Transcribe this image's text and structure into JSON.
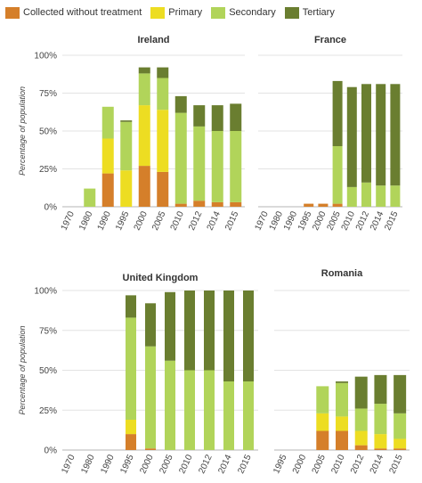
{
  "legend": [
    {
      "label": "Collected without treatment",
      "color": "#d57f2a"
    },
    {
      "label": "Primary",
      "color": "#eddd22"
    },
    {
      "label": "Secondary",
      "color": "#b1d45a"
    },
    {
      "label": "Tertiary",
      "color": "#6a7e30"
    }
  ],
  "chart_data": [
    {
      "type": "bar",
      "stacked": true,
      "title": "Ireland",
      "ylabel": "Percentage of population",
      "ylim": [
        0,
        100
      ],
      "yticks": [
        "0%",
        "25%",
        "50%",
        "75%",
        "100%"
      ],
      "categories": [
        "1970",
        "1980",
        "1990",
        "1995",
        "2000",
        "2005",
        "2010",
        "2012",
        "2014",
        "2015"
      ],
      "series": [
        {
          "name": "Collected without treatment",
          "values": [
            0,
            0,
            22,
            0,
            27,
            23,
            2,
            4,
            3,
            3
          ]
        },
        {
          "name": "Primary",
          "values": [
            0,
            0,
            23,
            24,
            40,
            41,
            0,
            0,
            0,
            0
          ]
        },
        {
          "name": "Secondary",
          "values": [
            0,
            12,
            21,
            32,
            21,
            21,
            60,
            49,
            47,
            47
          ]
        },
        {
          "name": "Tertiary",
          "values": [
            0,
            0,
            0,
            1,
            4,
            7,
            11,
            14,
            17,
            18
          ]
        }
      ]
    },
    {
      "type": "bar",
      "stacked": true,
      "title": "France",
      "ylabel": "",
      "ylim": [
        0,
        100
      ],
      "yticks": [],
      "categories": [
        "1970",
        "1980",
        "1990",
        "1995",
        "2000",
        "2005",
        "2010",
        "2012",
        "2014",
        "2015"
      ],
      "series": [
        {
          "name": "Collected without treatment",
          "values": [
            0,
            0,
            0,
            2,
            2,
            2,
            0,
            0,
            0,
            0
          ]
        },
        {
          "name": "Primary",
          "values": [
            0,
            0,
            0,
            0,
            0,
            0,
            0,
            0,
            0,
            0
          ]
        },
        {
          "name": "Secondary",
          "values": [
            0,
            0,
            0,
            0,
            0,
            38,
            13,
            16,
            14,
            14
          ]
        },
        {
          "name": "Tertiary",
          "values": [
            0,
            0,
            0,
            0,
            0,
            43,
            66,
            65,
            67,
            67
          ]
        }
      ]
    },
    {
      "type": "bar",
      "stacked": true,
      "title": "United Kingdom",
      "ylabel": "Percentage of population",
      "ylim": [
        0,
        100
      ],
      "yticks": [
        "0%",
        "25%",
        "50%",
        "75%",
        "100%"
      ],
      "categories": [
        "1970",
        "1980",
        "1990",
        "1995",
        "2000",
        "2005",
        "2010",
        "2012",
        "2014",
        "2015"
      ],
      "series": [
        {
          "name": "Collected without treatment",
          "values": [
            0,
            0,
            0,
            10,
            1,
            0,
            0,
            0,
            0,
            0
          ]
        },
        {
          "name": "Primary",
          "values": [
            0,
            0,
            0,
            9,
            0,
            0,
            0,
            0,
            0,
            0
          ]
        },
        {
          "name": "Secondary",
          "values": [
            0,
            0,
            0,
            64,
            64,
            56,
            50,
            50,
            43,
            43
          ]
        },
        {
          "name": "Tertiary",
          "values": [
            0,
            0,
            0,
            14,
            27,
            43,
            50,
            50,
            57,
            57
          ]
        }
      ]
    },
    {
      "type": "bar",
      "stacked": true,
      "title": "Romania",
      "ylabel": "",
      "ylim": [
        0,
        100
      ],
      "yticks": [],
      "categories": [
        "1995",
        "2000",
        "2005",
        "2010",
        "2012",
        "2014",
        "2015"
      ],
      "series": [
        {
          "name": "Collected without treatment",
          "values": [
            0,
            0,
            12,
            12,
            3,
            1,
            1
          ]
        },
        {
          "name": "Primary",
          "values": [
            0,
            0,
            11,
            9,
            9,
            9,
            6
          ]
        },
        {
          "name": "Secondary",
          "values": [
            0,
            0,
            17,
            21,
            14,
            19,
            16
          ]
        },
        {
          "name": "Tertiary",
          "values": [
            0,
            0,
            0,
            1,
            20,
            18,
            24
          ]
        }
      ]
    }
  ]
}
